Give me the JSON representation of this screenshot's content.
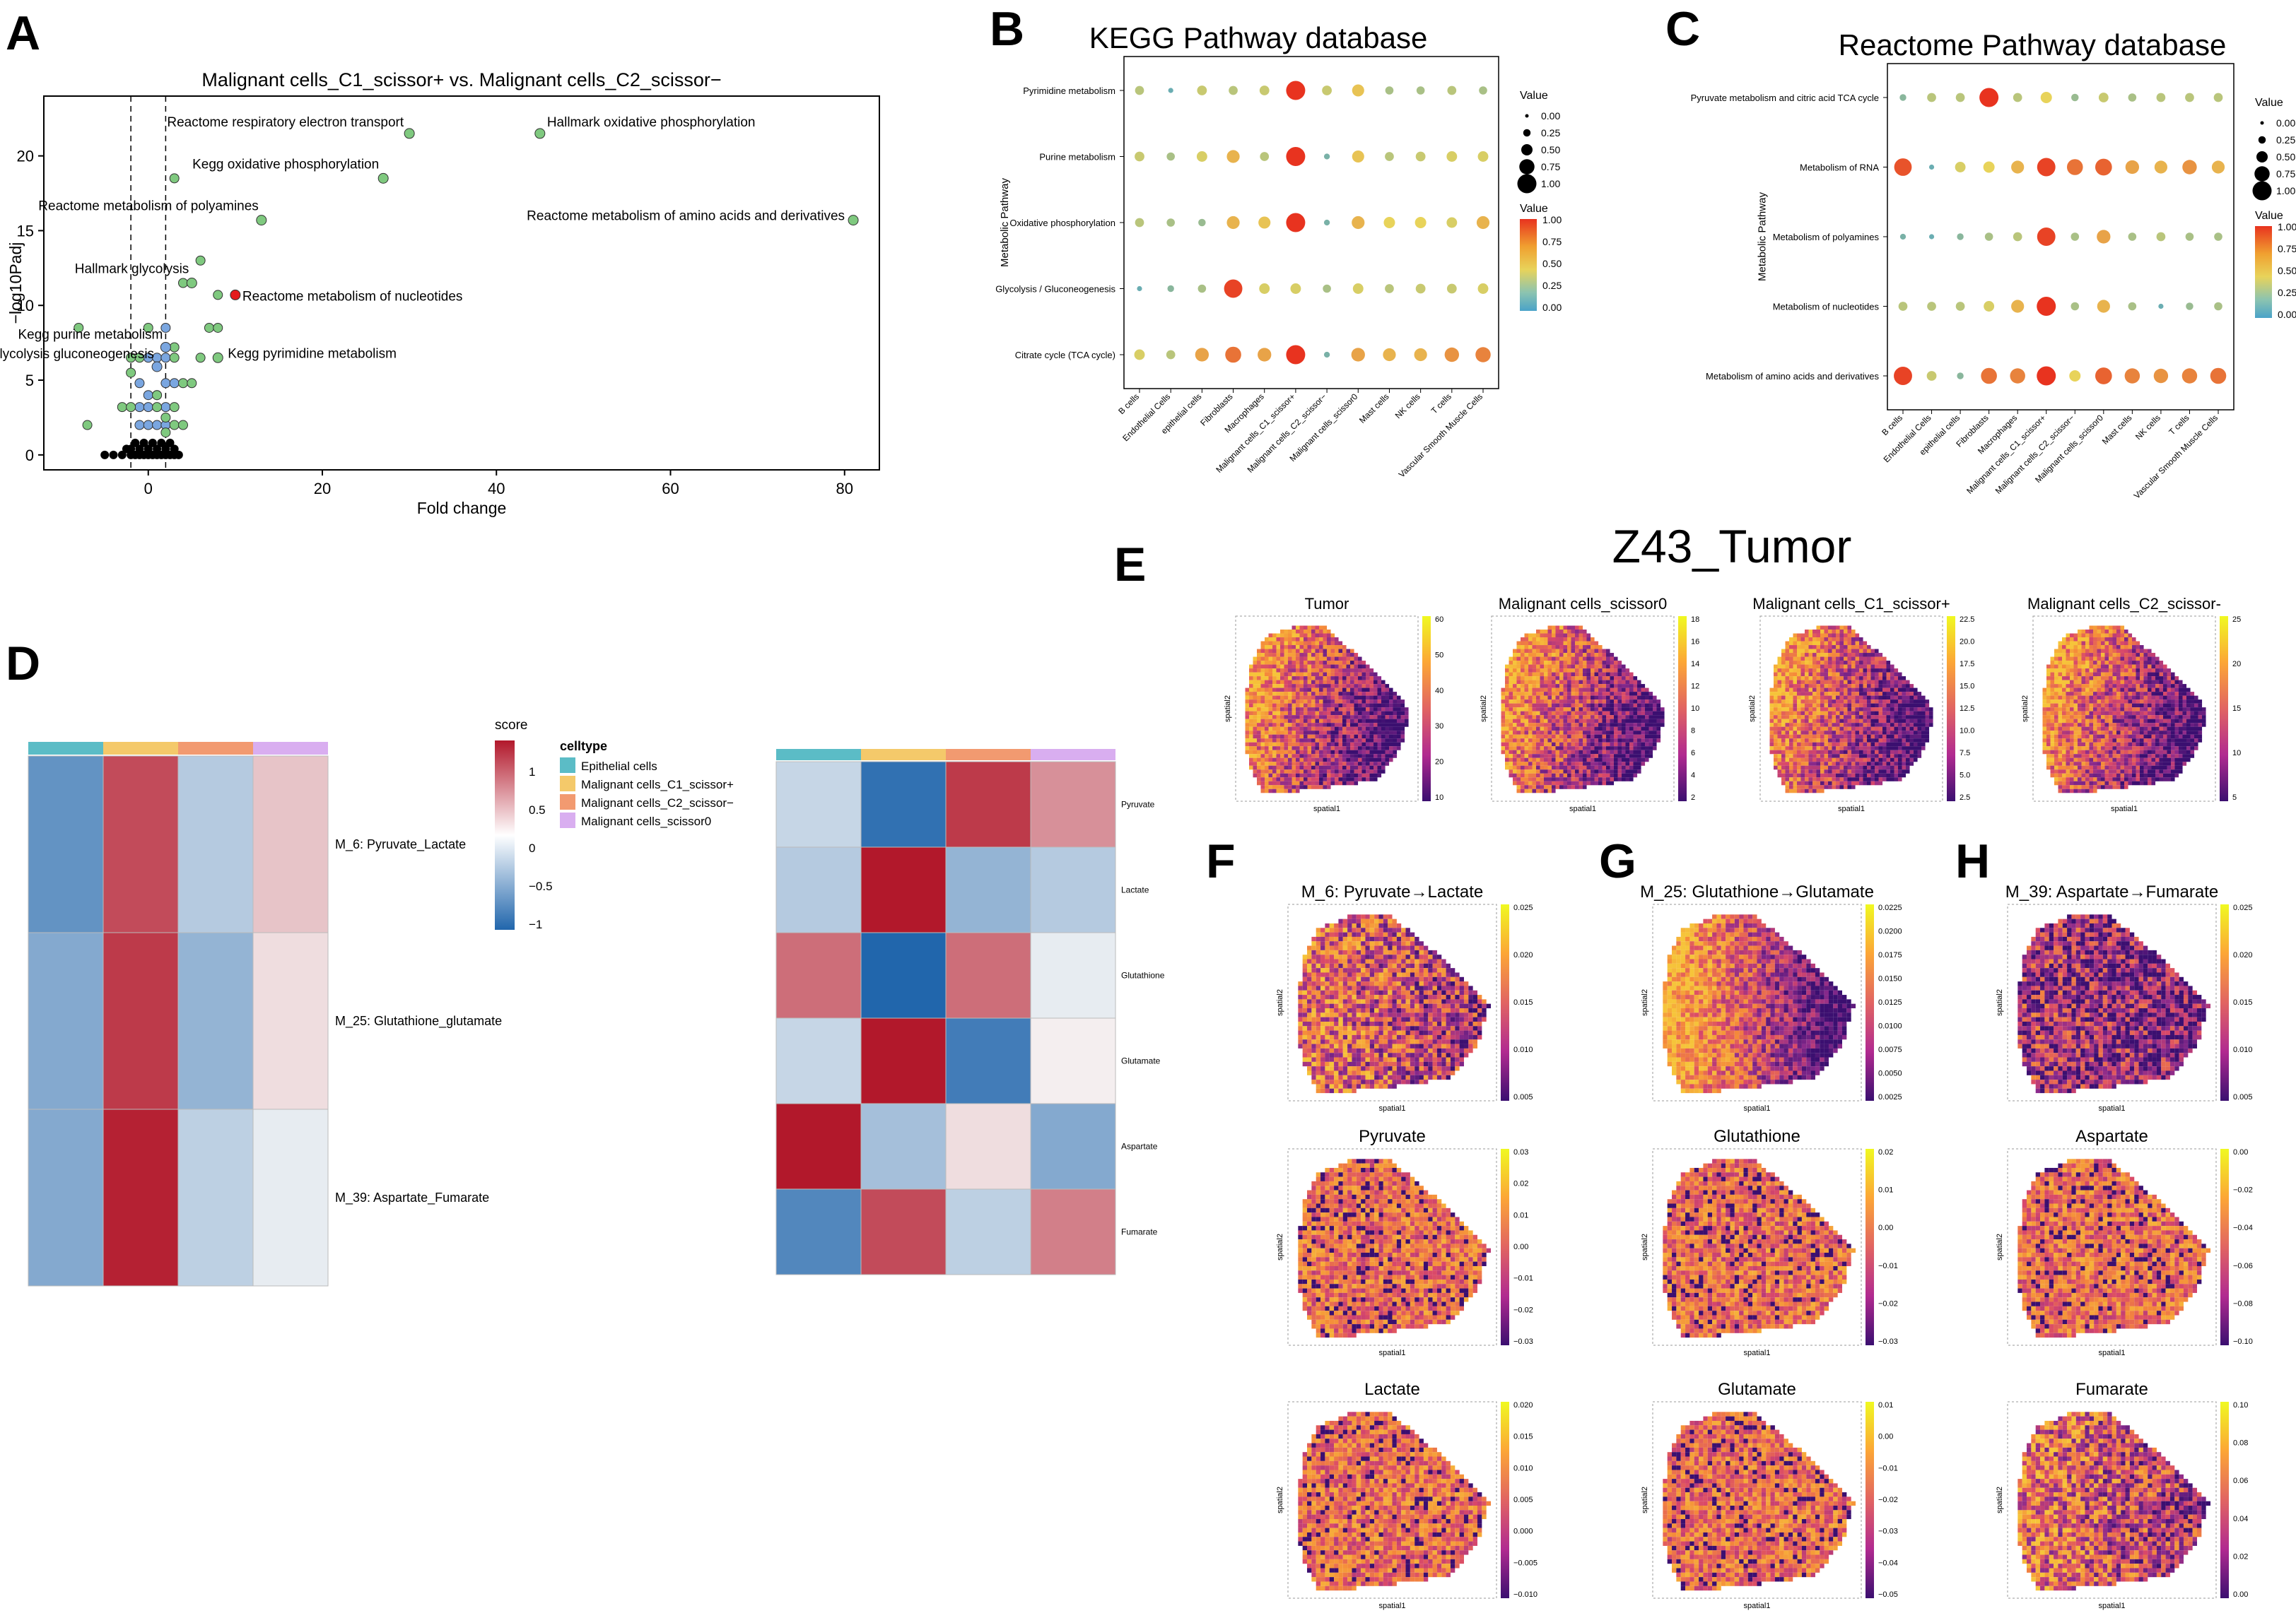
{
  "panels": {
    "A": "A",
    "B": "B",
    "C": "C",
    "D": "D",
    "E": "E",
    "F": "F",
    "G": "G",
    "H": "H"
  },
  "colors": {
    "sig_green": "#7fc97f",
    "sig_blue": "#7aa6e0",
    "sig_red": "#e41a1c",
    "ns_black": "#000000",
    "val_low": "#4aa3c8",
    "val_mid": "#e8d35a",
    "val_high": "#e8331f",
    "ct_epithelial": "#5bbcc6",
    "ct_c1": "#f4c96a",
    "ct_c2": "#f29a70",
    "ct_s0": "#d9aef0"
  },
  "chart_data": [
    {
      "id": "A",
      "type": "scatter",
      "title": "Malignant cells_C1_scissor+ vs. Malignant cells_C2_scissor−",
      "xlabel": "Fold change",
      "ylabel": "−log10Padj",
      "xlim": [
        -12,
        84
      ],
      "ylim": [
        -1,
        24
      ],
      "xticks": [
        0,
        20,
        40,
        60,
        80
      ],
      "yticks": [
        0,
        5,
        10,
        15,
        20
      ],
      "vlines": [
        -2,
        2
      ],
      "labeled_points": [
        {
          "x": 30,
          "y": 21.5,
          "label": "Reactome respiratory electron transport",
          "color": "green"
        },
        {
          "x": 45,
          "y": 21.5,
          "label": "Hallmark oxidative phosphorylation",
          "color": "green"
        },
        {
          "x": 27,
          "y": 18.5,
          "label": "Kegg oxidative phosphorylation",
          "color": "green"
        },
        {
          "x": 13,
          "y": 15.7,
          "label": "Reactome metabolism of polyamines",
          "color": "green"
        },
        {
          "x": 81,
          "y": 15.7,
          "label": "Reactome metabolism of amino acids and derivatives",
          "color": "green"
        },
        {
          "x": 5,
          "y": 11.5,
          "label": "Hallmark glycolysis",
          "color": "green"
        },
        {
          "x": 10,
          "y": 10.7,
          "label": "Reactome metabolism of nucleotides",
          "color": "red"
        },
        {
          "x": 2,
          "y": 7.2,
          "label": "Kegg purine metabolism",
          "color": "blue"
        },
        {
          "x": 8,
          "y": 6.5,
          "label": "Kegg pyrimidine metabolism",
          "color": "green"
        },
        {
          "x": 1,
          "y": 5.9,
          "label": "Kegg glycolysis gluconeogenesis",
          "color": "blue"
        }
      ],
      "green_points": [
        [
          3,
          18.5
        ],
        [
          6,
          13
        ],
        [
          4,
          11.5
        ],
        [
          8,
          10.7
        ],
        [
          -8,
          8.5
        ],
        [
          7,
          8.5
        ],
        [
          8,
          8.5
        ],
        [
          3,
          7.2
        ],
        [
          6,
          6.5
        ],
        [
          -7,
          2
        ],
        [
          -3,
          3.2
        ],
        [
          -2,
          3.2
        ],
        [
          1,
          3.2
        ],
        [
          3,
          3.2
        ],
        [
          -2,
          5.5
        ],
        [
          4,
          4.8
        ],
        [
          5,
          4.8
        ],
        [
          3,
          6.5
        ],
        [
          2,
          2.5
        ],
        [
          3,
          2
        ],
        [
          4,
          2
        ],
        [
          2,
          1.5
        ],
        [
          1,
          4
        ],
        [
          -1,
          6.5
        ],
        [
          0,
          8.5
        ],
        [
          -2,
          6.5
        ]
      ],
      "blue_points": [
        [
          2,
          8.5
        ],
        [
          0,
          6.5
        ],
        [
          1,
          6.5
        ],
        [
          2,
          6.5
        ],
        [
          -1,
          4.8
        ],
        [
          2,
          4.8
        ],
        [
          3,
          4.8
        ],
        [
          -1,
          3.2
        ],
        [
          0,
          3.2
        ],
        [
          2,
          3.2
        ],
        [
          -1,
          2
        ],
        [
          0,
          2
        ],
        [
          1,
          2
        ],
        [
          2,
          2
        ],
        [
          1,
          4
        ],
        [
          0,
          4
        ]
      ],
      "black_points": [
        [
          -5,
          0
        ],
        [
          -4,
          0
        ],
        [
          -2,
          0
        ],
        [
          -1.5,
          0
        ],
        [
          -1,
          0
        ],
        [
          -0.5,
          0
        ],
        [
          0,
          0
        ],
        [
          0.5,
          0
        ],
        [
          1,
          0
        ],
        [
          1.5,
          0
        ],
        [
          2,
          0
        ],
        [
          2.5,
          0
        ],
        [
          3,
          0
        ],
        [
          -1,
          0.4
        ],
        [
          0,
          0.4
        ],
        [
          1,
          0.4
        ],
        [
          2,
          0.4
        ],
        [
          -2,
          0.4
        ],
        [
          -1.5,
          0.8
        ],
        [
          -0.5,
          0.8
        ],
        [
          0.5,
          0.8
        ],
        [
          1.5,
          0.8
        ],
        [
          2.5,
          0.8
        ],
        [
          3,
          0.4
        ],
        [
          3.5,
          0
        ],
        [
          -3,
          0
        ],
        [
          -2.5,
          0.4
        ]
      ]
    },
    {
      "id": "B",
      "type": "dot",
      "title": "KEGG Pathway database",
      "ylabel": "Metabolic Pathway",
      "categories": [
        "B cells",
        "Endothelial Cells",
        "epithelial cells",
        "Fibroblasts",
        "Macrophages",
        "Malignant cells_C1_scissor+",
        "Malignant cells_C2_scissor−",
        "Malignant cells_scissor0",
        "Mast cells",
        "NK cells",
        "T cells",
        "Vascular Smooth Muscle Cells"
      ],
      "rows": [
        "Pyrimidine metabolism",
        "Purine metabolism",
        "Oxidative phosphorylation",
        "Glycolysis / Gluconeogenesis",
        "Citrate cycle (TCA cycle)"
      ],
      "values": [
        [
          0.35,
          0.1,
          0.4,
          0.35,
          0.4,
          1.0,
          0.4,
          0.55,
          0.3,
          0.3,
          0.35,
          0.3
        ],
        [
          0.4,
          0.3,
          0.45,
          0.6,
          0.35,
          1.0,
          0.15,
          0.55,
          0.35,
          0.4,
          0.45,
          0.45
        ],
        [
          0.35,
          0.3,
          0.25,
          0.6,
          0.55,
          1.0,
          0.15,
          0.6,
          0.5,
          0.5,
          0.45,
          0.6
        ],
        [
          0.1,
          0.2,
          0.3,
          0.95,
          0.45,
          0.45,
          0.3,
          0.45,
          0.35,
          0.4,
          0.4,
          0.45
        ],
        [
          0.45,
          0.35,
          0.65,
          0.8,
          0.65,
          1.0,
          0.15,
          0.65,
          0.6,
          0.6,
          0.7,
          0.75
        ]
      ],
      "size_legend": {
        "title": "Value",
        "labels": [
          "0.00",
          "0.25",
          "0.50",
          "0.75",
          "1.00"
        ]
      },
      "color_legend": {
        "title": "Value",
        "labels": [
          "1.00",
          "0.75",
          "0.50",
          "0.25",
          "0.00"
        ]
      }
    },
    {
      "id": "C",
      "type": "dot",
      "title": "Reactome Pathway database",
      "ylabel": "Metabolic Pathway",
      "categories": [
        "B cells",
        "Endothelial Cells",
        "epithelial cells",
        "Fibroblasts",
        "Macrophages",
        "Malignant cells_C1_scissor+",
        "Malignant cells_C2_scissor−",
        "Malignant cells_scissor0",
        "Mast cells",
        "NK cells",
        "T cells",
        "Vascular Smooth Muscle Cells"
      ],
      "rows": [
        "Pyruvate metabolism and citric acid TCA cycle",
        "Metabolism of RNA",
        "Metabolism of polyamines",
        "Metabolism of nucleotides",
        "Metabolism of amino acids and derivatives"
      ],
      "values": [
        [
          0.2,
          0.35,
          0.35,
          1.0,
          0.35,
          0.5,
          0.25,
          0.4,
          0.3,
          0.35,
          0.35,
          0.35
        ],
        [
          0.9,
          0.1,
          0.45,
          0.5,
          0.6,
          0.95,
          0.8,
          0.85,
          0.65,
          0.6,
          0.7,
          0.6
        ],
        [
          0.15,
          0.1,
          0.2,
          0.3,
          0.35,
          0.95,
          0.3,
          0.65,
          0.3,
          0.35,
          0.3,
          0.3
        ],
        [
          0.35,
          0.35,
          0.35,
          0.45,
          0.6,
          1.0,
          0.3,
          0.6,
          0.3,
          0.1,
          0.25,
          0.3
        ],
        [
          0.95,
          0.4,
          0.2,
          0.8,
          0.75,
          1.0,
          0.5,
          0.85,
          0.75,
          0.7,
          0.75,
          0.8
        ]
      ],
      "size_legend": {
        "title": "Value",
        "labels": [
          "0.00",
          "0.25",
          "0.50",
          "0.75",
          "1.00"
        ]
      },
      "color_legend": {
        "title": "Value",
        "labels": [
          "1.00",
          "0.75",
          "0.50",
          "0.25",
          "0.00"
        ]
      }
    },
    {
      "id": "D_left",
      "type": "heatmap",
      "columns": [
        "Epithelial cells",
        "Malignant cells_C1_scissor+",
        "Malignant cells_C2_scissor−",
        "Malignant cells_scissor0"
      ],
      "rows": [
        "M_6: Pyruvate_Lactate",
        "M_25: Glutathione_glutamate",
        "M_39: Aspartate_Fumarate"
      ],
      "values": [
        [
          -0.9,
          1.0,
          -0.4,
          0.3
        ],
        [
          -0.7,
          1.1,
          -0.6,
          0.15
        ],
        [
          -0.7,
          1.25,
          -0.35,
          -0.1
        ]
      ],
      "legend_title": "score",
      "legend_ticks": [
        "1",
        "0.5",
        "0",
        "−0.5",
        "−1"
      ],
      "celltype_title": "celltype"
    },
    {
      "id": "D_right",
      "type": "heatmap",
      "rows": [
        "Pyruvate",
        "Lactate",
        "Glutathione",
        "Glutamate",
        "Aspartate",
        "Fumarate"
      ],
      "values": [
        [
          -0.3,
          -1.2,
          1.1,
          0.6
        ],
        [
          -0.4,
          1.3,
          -0.6,
          -0.4
        ],
        [
          0.8,
          -1.3,
          0.8,
          -0.1
        ],
        [
          -0.3,
          1.3,
          -1.1,
          0.05
        ],
        [
          1.3,
          -0.5,
          0.15,
          -0.7
        ],
        [
          -1.0,
          1.0,
          -0.35,
          0.7
        ]
      ]
    }
  ],
  "spatial": {
    "title": "Z43_Tumor",
    "E": [
      {
        "title": "Tumor",
        "ticks": [
          "60",
          "50",
          "40",
          "30",
          "20",
          "10"
        ],
        "scheme": "tumor"
      },
      {
        "title": "Malignant cells_scissor0",
        "ticks": [
          "18",
          "16",
          "14",
          "12",
          "10",
          "8",
          "6",
          "4",
          "2"
        ],
        "scheme": "tumor"
      },
      {
        "title": "Malignant cells_C1_scissor+",
        "ticks": [
          "22.5",
          "20.0",
          "17.5",
          "15.0",
          "12.5",
          "10.0",
          "7.5",
          "5.0",
          "2.5"
        ],
        "scheme": "tumor"
      },
      {
        "title": "Malignant cells_C2_scissor-",
        "ticks": [
          "25",
          "20",
          "15",
          "10",
          "5"
        ],
        "scheme": "tumor"
      }
    ],
    "F": [
      {
        "title": "M_6: Pyruvate→Lactate",
        "ticks": [
          "0.025",
          "0.020",
          "0.015",
          "0.010",
          "0.005"
        ],
        "scheme": "mixed"
      },
      {
        "title": "Pyruvate",
        "ticks": [
          "0.03",
          "0.02",
          "0.01",
          "0.00",
          "−0.01",
          "−0.02",
          "−0.03"
        ],
        "scheme": "orange"
      },
      {
        "title": "Lactate",
        "ticks": [
          "0.020",
          "0.015",
          "0.010",
          "0.005",
          "0.000",
          "−0.005",
          "−0.010"
        ],
        "scheme": "orange"
      }
    ],
    "G": [
      {
        "title": "M_25: Glutathione→Glutamate",
        "ticks": [
          "0.0225",
          "0.0200",
          "0.0175",
          "0.0150",
          "0.0125",
          "0.0100",
          "0.0075",
          "0.0050",
          "0.0025"
        ],
        "scheme": "darkright"
      },
      {
        "title": "Glutathione",
        "ticks": [
          "0.02",
          "0.01",
          "0.00",
          "−0.01",
          "−0.02",
          "−0.03"
        ],
        "scheme": "orange"
      },
      {
        "title": "Glutamate",
        "ticks": [
          "0.01",
          "0.00",
          "−0.01",
          "−0.02",
          "−0.03",
          "−0.04",
          "−0.05"
        ],
        "scheme": "orange"
      }
    ],
    "H": [
      {
        "title": "M_39: Aspartate→Fumarate",
        "ticks": [
          "0.025",
          "0.020",
          "0.015",
          "0.010",
          "0.005"
        ],
        "scheme": "purple"
      },
      {
        "title": "Aspartate",
        "ticks": [
          "0.00",
          "−0.02",
          "−0.04",
          "−0.06",
          "−0.08",
          "−0.10"
        ],
        "scheme": "orange"
      },
      {
        "title": "Fumarate",
        "ticks": [
          "0.10",
          "0.08",
          "0.06",
          "0.04",
          "0.02",
          "0.00"
        ],
        "scheme": "mixed"
      }
    ],
    "xlabel": "spatial1",
    "ylabel": "spatial2"
  }
}
